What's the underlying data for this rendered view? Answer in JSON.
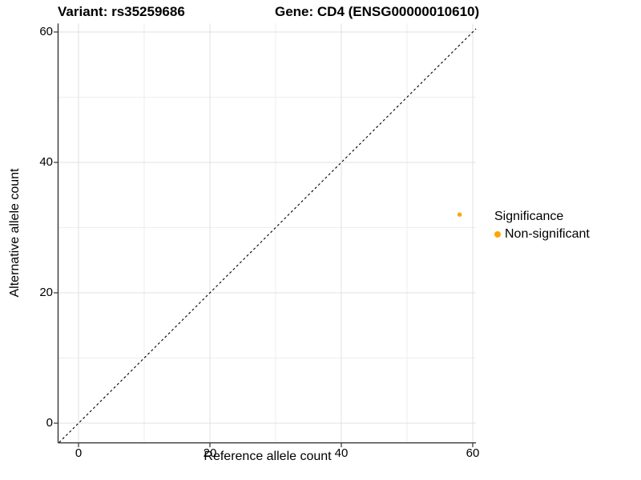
{
  "figure": {
    "title_left": "Variant: rs35259686",
    "title_right": "Gene: CD4 (ENSG00000010610)"
  },
  "chart_data": {
    "type": "scatter",
    "title": "Variant: rs35259686 — Gene: CD4 (ENSG00000010610)",
    "xlabel": "Reference allele count",
    "ylabel": "Alternative allele count",
    "x_ticks": [
      0,
      20,
      40,
      60
    ],
    "y_ticks": [
      0,
      20,
      40,
      60
    ],
    "xlim": [
      -3.05,
      60.5
    ],
    "ylim": [
      -2.95,
      61.3
    ],
    "grid": {
      "major": true,
      "minor": true,
      "major_color": "#e0e0e0",
      "minor_color": "#eeeeee"
    },
    "axis_line_color": "#333333",
    "reference_line": {
      "type": "identity y=x",
      "style": "dashed",
      "color": "#000000"
    },
    "series": [
      {
        "name": "Non-significant",
        "color": "#FFA500",
        "points": [
          {
            "x": 58,
            "y": 32
          }
        ]
      }
    ],
    "legend": {
      "title": "Significance",
      "position": "right",
      "items": [
        {
          "label": "Non-significant",
          "color": "#FFA500"
        }
      ]
    }
  }
}
